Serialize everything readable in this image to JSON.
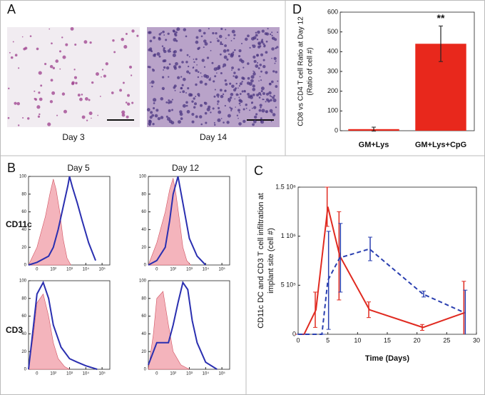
{
  "figure": {
    "panel_labels": [
      "A",
      "B",
      "C",
      "D"
    ],
    "image_captions": [
      "Day 3",
      "Day 14"
    ],
    "flow_columns": [
      "Day 5",
      "Day 12"
    ],
    "flow_rows": [
      "CD11c",
      "CD3"
    ]
  },
  "chart_data": [
    {
      "type": "bar",
      "y_label": [
        "CD8 vs CD4 T cell Ratio at Day 12",
        "(Ratio of cell #)"
      ],
      "categories": [
        "GM+Lys",
        "GM+Lys+CpG"
      ],
      "values": [
        8,
        440
      ],
      "errors": [
        10,
        90
      ],
      "color": "#e8281c",
      "annotation": "**",
      "ylim": [
        0,
        600
      ],
      "yticks": [
        0,
        100,
        200,
        300,
        400,
        500,
        600
      ]
    },
    {
      "type": "line",
      "x_label": "Time (Days)",
      "y_label": [
        "CD11c DC and CD3 T cell infiltration at",
        "implant site  (cell #)"
      ],
      "xlim": [
        0,
        30
      ],
      "xticks": [
        0,
        5,
        10,
        15,
        20,
        25,
        30
      ],
      "ylim": [
        0,
        1500000
      ],
      "yticks": [
        0,
        {
          "value": 500000,
          "label": "5 10⁵"
        },
        {
          "value": 1000000,
          "label": "1 10⁶"
        },
        {
          "value": 1500000,
          "label": "1.5 10⁶"
        }
      ],
      "series": [
        {
          "color": "#e02a20",
          "dash": false,
          "x": [
            0,
            1,
            3,
            5,
            7,
            12,
            21,
            28
          ],
          "values": [
            0,
            0,
            250000,
            1300000,
            800000,
            250000,
            70000,
            220000
          ],
          "errors": [
            0,
            0,
            180000,
            200000,
            450000,
            80000,
            30000,
            320000
          ]
        },
        {
          "color": "#2a3fb0",
          "dash": true,
          "x": [
            0,
            1,
            4,
            5,
            7,
            12,
            21,
            28
          ],
          "values": [
            0,
            0,
            0,
            550000,
            780000,
            870000,
            410000,
            220000
          ],
          "errors": [
            0,
            0,
            0,
            500000,
            350000,
            120000,
            30000,
            230000
          ]
        }
      ]
    },
    {
      "type": "flow",
      "xscale": "biexponential",
      "xlim": [
        -30,
        300000
      ],
      "ylim": [
        0,
        100
      ],
      "xticks": [
        0,
        {
          "value": 100,
          "label": "10²"
        },
        {
          "value": 1000,
          "label": "10³"
        },
        {
          "value": 10000,
          "label": "10⁴"
        },
        {
          "value": 100000,
          "label": "10⁵"
        }
      ],
      "yticks": [
        0,
        20,
        40,
        60,
        80,
        100
      ],
      "series": [
        {
          "color": "#f4b4bc",
          "fill": true,
          "x": [
            -30,
            0,
            30,
            60,
            100,
            150,
            250,
            400,
            700,
            1200
          ],
          "values": [
            0,
            20,
            55,
            80,
            97,
            85,
            60,
            30,
            8,
            0
          ]
        },
        {
          "color": "#2a2fb0",
          "fill": false,
          "x": [
            -30,
            0,
            50,
            100,
            200,
            400,
            800,
            1000,
            1500,
            3000,
            6000,
            15000,
            40000
          ],
          "values": [
            0,
            3,
            10,
            20,
            40,
            65,
            90,
            100,
            88,
            70,
            50,
            25,
            5
          ]
        }
      ]
    },
    {
      "type": "flow",
      "xscale": "biexponential",
      "xlim": [
        -30,
        300000
      ],
      "ylim": [
        0,
        100
      ],
      "xticks": [
        0,
        {
          "value": 100,
          "label": "10²"
        },
        {
          "value": 1000,
          "label": "10³"
        },
        {
          "value": 10000,
          "label": "10⁴"
        },
        {
          "value": 100000,
          "label": "10⁵"
        }
      ],
      "yticks": [
        0,
        20,
        40,
        60,
        80,
        100
      ],
      "series": [
        {
          "color": "#f4b4bc",
          "fill": true,
          "x": [
            -30,
            0,
            30,
            60,
            100,
            150,
            250,
            400,
            700,
            1200
          ],
          "values": [
            0,
            25,
            60,
            85,
            98,
            80,
            50,
            20,
            5,
            0
          ]
        },
        {
          "color": "#2a2fb0",
          "fill": false,
          "x": [
            -30,
            0,
            30,
            60,
            100,
            200,
            400,
            1000,
            3000,
            10000
          ],
          "values": [
            0,
            5,
            20,
            50,
            80,
            100,
            70,
            30,
            10,
            0
          ]
        }
      ]
    },
    {
      "type": "flow",
      "xscale": "biexponential",
      "xlim": [
        -30,
        300000
      ],
      "ylim": [
        0,
        100
      ],
      "xticks": [
        0,
        {
          "value": 100,
          "label": "10²"
        },
        {
          "value": 1000,
          "label": "10³"
        },
        {
          "value": 10000,
          "label": "10⁴"
        },
        {
          "value": 100000,
          "label": "10⁵"
        }
      ],
      "yticks": [
        0,
        20,
        40,
        60,
        80,
        100
      ],
      "series": [
        {
          "color": "#f4b4bc",
          "fill": true,
          "x": [
            -30,
            -10,
            0,
            20,
            50,
            100,
            200,
            500,
            1000
          ],
          "values": [
            0,
            40,
            75,
            85,
            60,
            30,
            12,
            3,
            0
          ]
        },
        {
          "color": "#2a2fb0",
          "fill": false,
          "x": [
            -30,
            -10,
            0,
            20,
            50,
            100,
            300,
            1000,
            3000,
            10000,
            50000
          ],
          "values": [
            0,
            50,
            85,
            98,
            80,
            50,
            25,
            12,
            8,
            4,
            0
          ]
        }
      ]
    },
    {
      "type": "flow",
      "xscale": "biexponential",
      "xlim": [
        -30,
        300000
      ],
      "ylim": [
        0,
        100
      ],
      "xticks": [
        0,
        {
          "value": 100,
          "label": "10²"
        },
        {
          "value": 1000,
          "label": "10³"
        },
        {
          "value": 10000,
          "label": "10⁴"
        },
        {
          "value": 100000,
          "label": "10⁵"
        }
      ],
      "yticks": [
        0,
        20,
        40,
        60,
        80,
        100
      ],
      "series": [
        {
          "color": "#f4b4bc",
          "fill": true,
          "x": [
            -30,
            -10,
            0,
            20,
            50,
            100,
            300,
            1000
          ],
          "values": [
            0,
            40,
            80,
            88,
            50,
            20,
            5,
            0
          ]
        },
        {
          "color": "#2a2fb0",
          "fill": false,
          "x": [
            -30,
            0,
            50,
            100,
            200,
            400,
            800,
            1500,
            3000,
            10000,
            50000
          ],
          "values": [
            5,
            30,
            30,
            50,
            75,
            98,
            90,
            55,
            30,
            8,
            0
          ]
        }
      ]
    }
  ]
}
